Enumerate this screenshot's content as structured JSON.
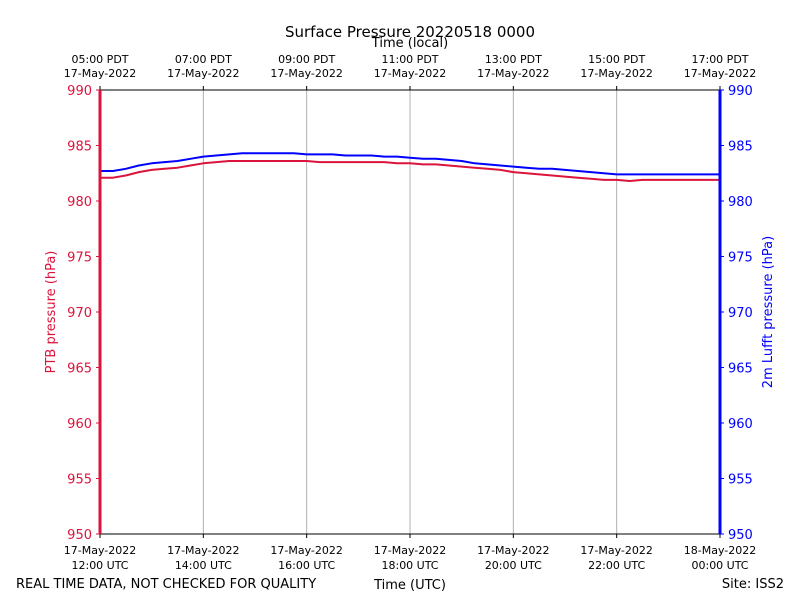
{
  "chart_data": {
    "type": "line",
    "title": "Surface Pressure 20220518 0000",
    "top_axis_label": "Time (local)",
    "xlabel": "Time (UTC)",
    "ylabel_left": "PTB pressure (hPa)",
    "ylabel_right": "2m Lufft pressure (hPa)",
    "ylim": [
      950,
      990
    ],
    "yticks": [
      "950",
      "955",
      "960",
      "965",
      "970",
      "975",
      "980",
      "985",
      "990"
    ],
    "xlim_hours": [
      12,
      24
    ],
    "xticks_bottom": [
      {
        "h": 12,
        "line1": "17-May-2022",
        "line2": "12:00 UTC"
      },
      {
        "h": 14,
        "line1": "17-May-2022",
        "line2": "14:00 UTC"
      },
      {
        "h": 16,
        "line1": "17-May-2022",
        "line2": "16:00 UTC"
      },
      {
        "h": 18,
        "line1": "17-May-2022",
        "line2": "18:00 UTC"
      },
      {
        "h": 20,
        "line1": "17-May-2022",
        "line2": "20:00 UTC"
      },
      {
        "h": 22,
        "line1": "17-May-2022",
        "line2": "22:00 UTC"
      },
      {
        "h": 24,
        "line1": "18-May-2022",
        "line2": "00:00 UTC"
      }
    ],
    "xticks_top": [
      {
        "h": 12,
        "line1": "05:00 PDT",
        "line2": "17-May-2022"
      },
      {
        "h": 14,
        "line1": "07:00 PDT",
        "line2": "17-May-2022"
      },
      {
        "h": 16,
        "line1": "09:00 PDT",
        "line2": "17-May-2022"
      },
      {
        "h": 18,
        "line1": "11:00 PDT",
        "line2": "17-May-2022"
      },
      {
        "h": 20,
        "line1": "13:00 PDT",
        "line2": "17-May-2022"
      },
      {
        "h": 22,
        "line1": "15:00 PDT",
        "line2": "17-May-2022"
      },
      {
        "h": 24,
        "line1": "17:00 PDT",
        "line2": "17-May-2022"
      }
    ],
    "grid": "vertical",
    "series": [
      {
        "name": "PTB pressure",
        "axis": "left",
        "color": "#dc143c",
        "x": [
          12.0,
          12.25,
          12.5,
          12.75,
          13.0,
          13.25,
          13.5,
          13.75,
          14.0,
          14.25,
          14.5,
          14.75,
          15.0,
          15.25,
          15.5,
          15.75,
          16.0,
          16.25,
          16.5,
          16.75,
          17.0,
          17.25,
          17.5,
          17.75,
          18.0,
          18.25,
          18.5,
          18.75,
          19.0,
          19.25,
          19.5,
          19.75,
          20.0,
          20.25,
          20.5,
          20.75,
          21.0,
          21.25,
          21.5,
          21.75,
          22.0,
          22.25,
          22.5,
          22.75,
          23.0,
          23.25,
          23.5,
          23.75,
          24.0
        ],
        "y": [
          982.1,
          982.1,
          982.3,
          982.6,
          982.8,
          982.9,
          983.0,
          983.2,
          983.4,
          983.5,
          983.6,
          983.6,
          983.6,
          983.6,
          983.6,
          983.6,
          983.6,
          983.5,
          983.5,
          983.5,
          983.5,
          983.5,
          983.5,
          983.4,
          983.4,
          983.3,
          983.3,
          983.2,
          983.1,
          983.0,
          982.9,
          982.8,
          982.6,
          982.5,
          982.4,
          982.3,
          982.2,
          982.1,
          982.0,
          981.9,
          981.9,
          981.8,
          981.9,
          981.9,
          981.9,
          981.9,
          981.9,
          981.9,
          981.9
        ]
      },
      {
        "name": "2m Lufft pressure",
        "axis": "right",
        "color": "#0000ff",
        "x": [
          12.0,
          12.25,
          12.5,
          12.75,
          13.0,
          13.25,
          13.5,
          13.75,
          14.0,
          14.25,
          14.5,
          14.75,
          15.0,
          15.25,
          15.5,
          15.75,
          16.0,
          16.25,
          16.5,
          16.75,
          17.0,
          17.25,
          17.5,
          17.75,
          18.0,
          18.25,
          18.5,
          18.75,
          19.0,
          19.25,
          19.5,
          19.75,
          20.0,
          20.25,
          20.5,
          20.75,
          21.0,
          21.25,
          21.5,
          21.75,
          22.0,
          22.25,
          22.5,
          22.75,
          23.0,
          23.25,
          23.5,
          23.75,
          24.0
        ],
        "y": [
          982.7,
          982.7,
          982.9,
          983.2,
          983.4,
          983.5,
          983.6,
          983.8,
          984.0,
          984.1,
          984.2,
          984.3,
          984.3,
          984.3,
          984.3,
          984.3,
          984.2,
          984.2,
          984.2,
          984.1,
          984.1,
          984.1,
          984.0,
          984.0,
          983.9,
          983.8,
          983.8,
          983.7,
          983.6,
          983.4,
          983.3,
          983.2,
          983.1,
          983.0,
          982.9,
          982.9,
          982.8,
          982.7,
          982.6,
          982.5,
          982.4,
          982.4,
          982.4,
          982.4,
          982.4,
          982.4,
          982.4,
          982.4,
          982.4
        ]
      }
    ]
  },
  "footer": {
    "left_note": "REAL TIME DATA, NOT CHECKED FOR QUALITY",
    "site": "Site: ISS2"
  }
}
